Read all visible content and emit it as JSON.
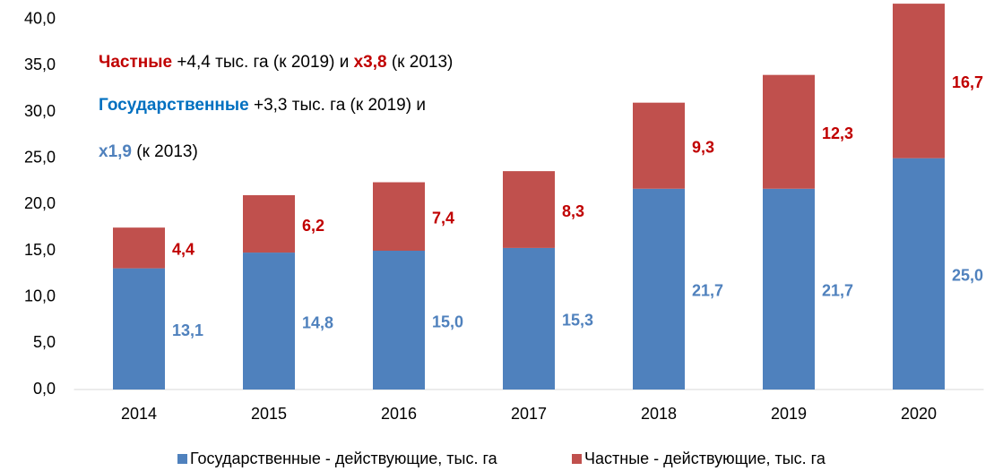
{
  "chart_data": {
    "type": "stacked_bar",
    "categories": [
      "2014",
      "2015",
      "2016",
      "2017",
      "2018",
      "2019",
      "2020"
    ],
    "series": [
      {
        "name": "Государственные - действующие, тыс. га",
        "color": "#4f81bd",
        "label_color": "#4f81bd",
        "values": [
          13.1,
          14.8,
          15.0,
          15.3,
          21.7,
          21.7,
          25.0
        ],
        "value_labels": [
          "13,1",
          "14,8",
          "15,0",
          "15,3",
          "21,7",
          "21,7",
          "25,0"
        ]
      },
      {
        "name": "Частные - действующие, тыс. га",
        "color": "#c0504d",
        "label_color": "#c00000",
        "values": [
          4.4,
          6.2,
          7.4,
          8.3,
          9.3,
          12.3,
          16.7
        ],
        "value_labels": [
          "4,4",
          "6,2",
          "7,4",
          "8,3",
          "9,3",
          "12,3",
          "16,7"
        ]
      }
    ],
    "ylim": [
      0,
      42
    ],
    "yticks": [
      {
        "value": 0,
        "label": "0,0"
      },
      {
        "value": 5,
        "label": "5,0"
      },
      {
        "value": 10,
        "label": "10,0"
      },
      {
        "value": 15,
        "label": "15,0"
      },
      {
        "value": 20,
        "label": "20,0"
      },
      {
        "value": 25,
        "label": "25,0"
      },
      {
        "value": 30,
        "label": "30,0"
      },
      {
        "value": 35,
        "label": "35,0"
      },
      {
        "value": 40,
        "label": "40,0"
      }
    ],
    "grid": false,
    "legend": "bottom",
    "annotations": [
      [
        {
          "text": "Частные",
          "color": "#c00000",
          "bold": true
        },
        {
          "text": " +4,4 тыс. га (к 2019) и ",
          "color": "#000000",
          "bold": false
        },
        {
          "text": "x3,8",
          "color": "#c00000",
          "bold": true
        },
        {
          "text": " (к 2013)",
          "color": "#000000",
          "bold": false
        }
      ],
      [
        {
          "text": "Государственные",
          "color": "#0070c0",
          "bold": true
        },
        {
          "text": " +3,3 тыс. га (к 2019) и",
          "color": "#000000",
          "bold": false
        }
      ],
      [
        {
          "text": "x1,9",
          "color": "#4f81bd",
          "bold": true
        },
        {
          "text": " (к 2013)",
          "color": "#000000",
          "bold": false
        }
      ]
    ]
  }
}
